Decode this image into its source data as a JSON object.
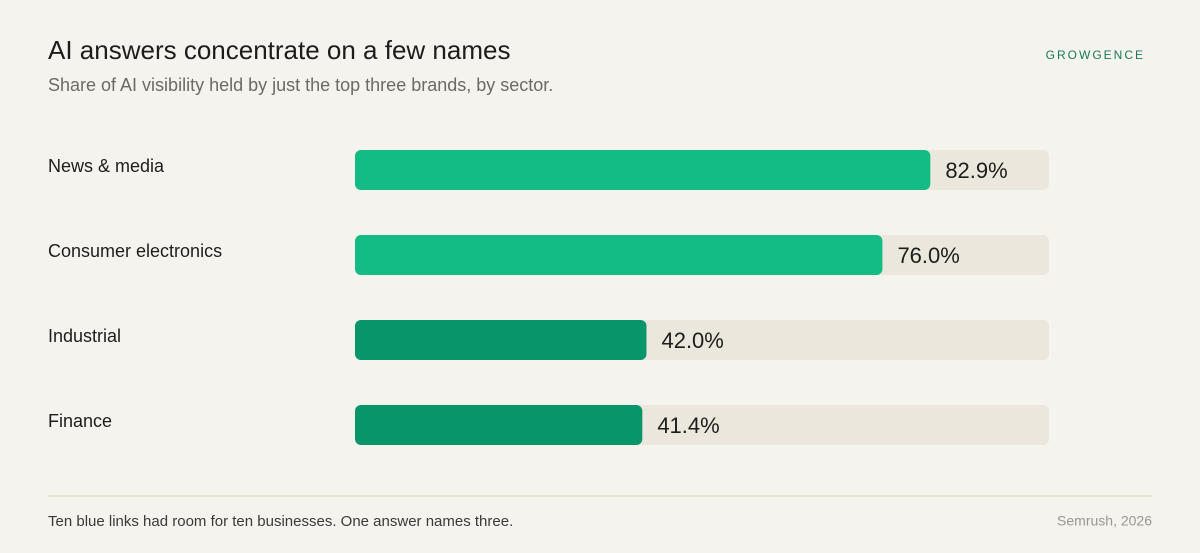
{
  "chart_data": {
    "type": "bar",
    "title": "AI answers concentrate on a few names",
    "subtitle": "Share of AI visibility held by just the top three brands, by sector.",
    "brand": "GROWGENCE",
    "categories": [
      "News & media",
      "Consumer electronics",
      "Industrial",
      "Finance"
    ],
    "values": [
      82.9,
      76.0,
      42.0,
      41.4
    ],
    "value_labels": [
      "82.9%",
      "76.0%",
      "42.0%",
      "41.4%"
    ],
    "colors": [
      "#13bb85",
      "#13bb85",
      "#08956a",
      "#08956a"
    ],
    "xlim": [
      0,
      100
    ],
    "footnote": "Ten blue links had room for ten businesses. One answer names three.",
    "source": "Semrush, 2026"
  }
}
